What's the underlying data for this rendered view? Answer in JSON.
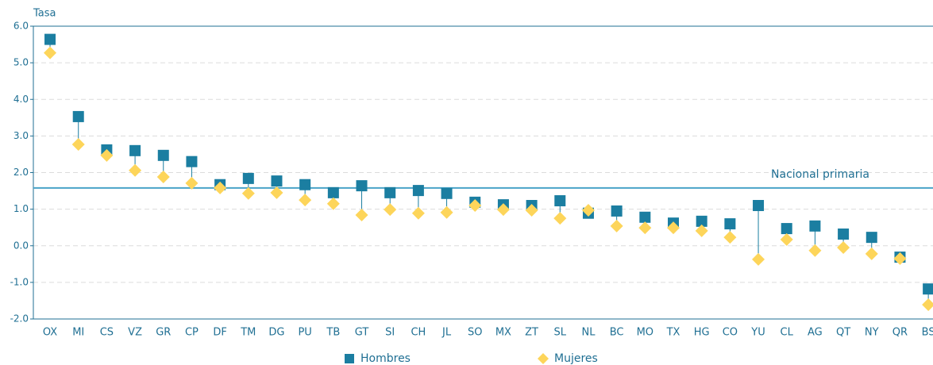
{
  "chart_data": {
    "type": "dot",
    "y_label": "Tasa",
    "categories": [
      "OX",
      "MI",
      "CS",
      "VZ",
      "GR",
      "CP",
      "DF",
      "TM",
      "DG",
      "PU",
      "TB",
      "GT",
      "SI",
      "CH",
      "JL",
      "SO",
      "MX",
      "ZT",
      "SL",
      "NL",
      "BC",
      "MO",
      "TX",
      "HG",
      "CO",
      "YU",
      "CL",
      "AG",
      "QT",
      "NY",
      "QR",
      "BS"
    ],
    "series": [
      {
        "name": "Hombres",
        "color": "#1b7ea1",
        "marker": "square",
        "values": [
          5.64,
          3.53,
          2.62,
          2.6,
          2.47,
          2.3,
          1.67,
          1.84,
          1.77,
          1.67,
          1.45,
          1.64,
          1.45,
          1.51,
          1.43,
          1.19,
          1.12,
          1.1,
          1.23,
          0.89,
          0.95,
          0.78,
          0.62,
          0.67,
          0.6,
          1.1,
          0.47,
          0.54,
          0.32,
          0.23,
          -0.31,
          -1.18
        ]
      },
      {
        "name": "Mujeres",
        "color": "#fdd55a",
        "marker": "diamond",
        "values": [
          5.27,
          2.77,
          2.47,
          2.06,
          1.88,
          1.71,
          1.58,
          1.43,
          1.45,
          1.25,
          1.15,
          0.84,
          0.99,
          0.89,
          0.91,
          1.1,
          0.99,
          0.97,
          0.75,
          0.97,
          0.54,
          0.49,
          0.49,
          0.41,
          0.23,
          -0.37,
          0.17,
          -0.13,
          -0.05,
          -0.22,
          -0.35,
          -1.61
        ]
      }
    ],
    "reference_line": {
      "label": "Nacional primaria",
      "value": 1.58,
      "color": "#4aa3c8"
    },
    "ylim": [
      -2,
      6
    ],
    "yticks": [
      {
        "value": -2,
        "label": "-2.0"
      },
      {
        "value": -1,
        "label": "-1.0"
      },
      {
        "value": 0,
        "label": "0.0"
      },
      {
        "value": 1,
        "label": "1.0"
      },
      {
        "value": 2,
        "label": "2.0"
      },
      {
        "value": 3,
        "label": "3.0"
      },
      {
        "value": 4,
        "label": "4.0"
      },
      {
        "value": 5,
        "label": "5.0"
      },
      {
        "value": 6,
        "label": "6.0"
      }
    ],
    "grid": true
  }
}
